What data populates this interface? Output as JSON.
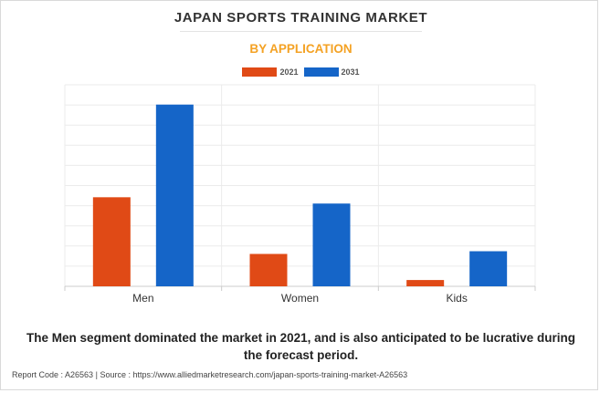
{
  "chart_data": {
    "type": "bar",
    "title": "JAPAN SPORTS TRAINING MARKET",
    "subtitle": "BY APPLICATION",
    "categories": [
      "Men",
      "Women",
      "Kids"
    ],
    "series": [
      {
        "name": "2021",
        "color": "#e04a16",
        "values": [
          99,
          36,
          7
        ]
      },
      {
        "name": "2031",
        "color": "#1565c8",
        "values": [
          202,
          92,
          39
        ]
      }
    ],
    "ylim": [
      0,
      224
    ],
    "grid": true,
    "legend": "top-center"
  },
  "caption": "The Men segment dominated the market in 2021, and is also anticipated to be lucrative during the forecast period.",
  "footer": {
    "report_code": "Report Code : A26563",
    "separator": "|",
    "source": "Source : https://www.alliedmarketresearch.com/japan-sports-training-market-A26563"
  }
}
